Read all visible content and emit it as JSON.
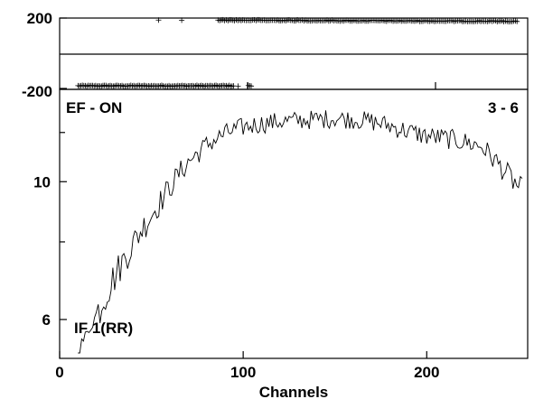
{
  "chart_data": [
    {
      "type": "scatter",
      "panel": "residuals",
      "ylim": [
        -200,
        200
      ],
      "y_ticks": [
        "200",
        "-200"
      ],
      "xlim": [
        0,
        255
      ],
      "series": [
        {
          "x_start": 10,
          "x_end": 110,
          "x_step": 0.8,
          "y": -185,
          "sparse_after": 95
        },
        {
          "x_start": 53,
          "x_end": 250,
          "x_step": 0.9,
          "y": 185,
          "sparse_before": 86
        }
      ]
    },
    {
      "type": "line",
      "panel": "main",
      "title_left": "EF - ON",
      "title_right": "3 - 6",
      "inner_label": "IF 1(RR)",
      "xlabel": "Channels",
      "x_ticks": [
        "0",
        "100",
        "200"
      ],
      "x_tick_values": [
        0,
        100,
        200
      ],
      "y_ticks": [
        "10",
        "6"
      ],
      "y_tick_values": [
        10,
        6
      ],
      "y_minor_ticks": [
        12,
        8
      ],
      "y_scale": "log",
      "xlim": [
        0,
        255
      ],
      "ylim": [
        5.3,
        13.8
      ],
      "control_points": [
        [
          10,
          5.35
        ],
        [
          15,
          5.7
        ],
        [
          20,
          6.1
        ],
        [
          25,
          6.6
        ],
        [
          30,
          7.05
        ],
        [
          35,
          7.5
        ],
        [
          40,
          7.95
        ],
        [
          45,
          8.4
        ],
        [
          50,
          8.85
        ],
        [
          55,
          9.3
        ],
        [
          60,
          9.8
        ],
        [
          65,
          10.3
        ],
        [
          70,
          10.75
        ],
        [
          75,
          11.1
        ],
        [
          80,
          11.45
        ],
        [
          85,
          11.7
        ],
        [
          90,
          11.95
        ],
        [
          95,
          12.1
        ],
        [
          100,
          12.25
        ],
        [
          110,
          12.4
        ],
        [
          120,
          12.5
        ],
        [
          130,
          12.55
        ],
        [
          140,
          12.6
        ],
        [
          150,
          12.65
        ],
        [
          160,
          12.6
        ],
        [
          170,
          12.5
        ],
        [
          180,
          12.3
        ],
        [
          190,
          12.05
        ],
        [
          200,
          11.85
        ],
        [
          210,
          11.75
        ],
        [
          220,
          11.6
        ],
        [
          230,
          11.4
        ],
        [
          235,
          11.0
        ],
        [
          240,
          10.6
        ],
        [
          245,
          10.2
        ],
        [
          250,
          9.8
        ],
        [
          252,
          9.7
        ]
      ],
      "n_points": 243,
      "noise_amplitude": 0.45
    }
  ],
  "x_axis_label": "Channels"
}
